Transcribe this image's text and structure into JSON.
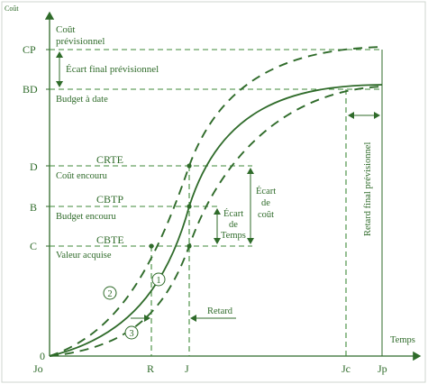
{
  "axes": {
    "y_title_small": "Coût",
    "y_title_line1": "Coût",
    "y_title_line2": "prévisionnel",
    "x_title": "Temps"
  },
  "y_levels": {
    "cp": "CP",
    "bd": "BD",
    "d": "D",
    "b": "B",
    "c": "C",
    "o": "0"
  },
  "x_ticks": {
    "jo": "Jo",
    "r": "R",
    "j": "J",
    "jc": "Jc",
    "jp": "Jp"
  },
  "annotations": {
    "ecart_final": "Écart final prévisionnel",
    "budget_date": "Budget à date",
    "crte": "CRTE",
    "cout_encouru": "Coût encouru",
    "cbtp": "CBTP",
    "budget_encouru": "Budget encouru",
    "cbte": "CBTE",
    "valeur_acquise": "Valeur acquise",
    "ecart_temps_1": "Écart",
    "ecart_temps_2": "de",
    "ecart_temps_3": "Temps",
    "ecart_cout_1": "Écart",
    "ecart_cout_2": "de",
    "ecart_cout_3": "coût",
    "retard": "Retard",
    "retard_final": "Retard final prévisionnel"
  },
  "curve_markers": [
    "1",
    "2",
    "3"
  ],
  "colors": {
    "ink": "#2f6b2a",
    "dash": "#3f8a3a",
    "background": "#ffffff"
  }
}
